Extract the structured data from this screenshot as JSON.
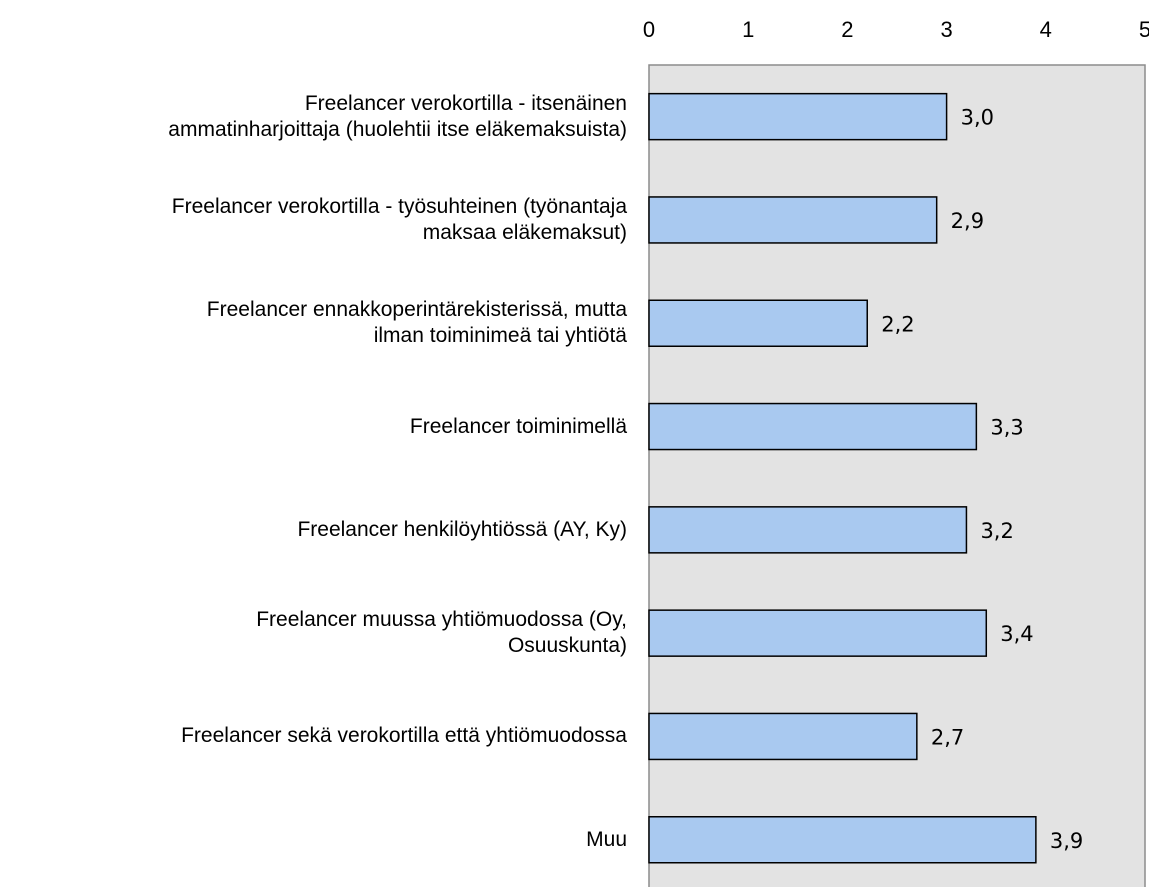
{
  "chart_data": {
    "type": "barh",
    "categories": [
      "Freelancer verokortilla - itsenäinen\nammatinharjoittaja (huolehtii itse eläkemaksuista)",
      "Freelancer verokortilla - työsuhteinen (työnantaja\nmaksaa eläkemaksut)",
      "Freelancer ennakkoperintärekisterissä, mutta\nilman toiminimeä tai yhtiötä",
      "Freelancer toiminimellä",
      "Freelancer henkilöyhtiössä (AY, Ky)",
      "Freelancer muussa yhtiömuodossa (Oy,\nOsuuskunta)",
      "Freelancer sekä verokortilla että yhtiömuodossa",
      "Muu"
    ],
    "values": [
      3.0,
      2.9,
      2.2,
      3.3,
      3.2,
      3.4,
      2.7,
      3.9
    ],
    "value_labels": [
      "3,0",
      "2,9",
      "2,2",
      "3,3",
      "3,2",
      "3,4",
      "2,7",
      "3,9"
    ],
    "color": "#a9c9f0",
    "xlim": [
      0,
      5
    ],
    "xticks": [
      0,
      1,
      2,
      3,
      4,
      5
    ]
  }
}
